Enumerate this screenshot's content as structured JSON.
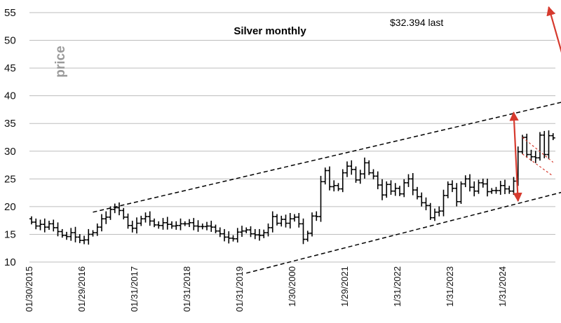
{
  "chart_data": {
    "type": "ohlc",
    "title": "Silver monthly",
    "ylabel": "price",
    "annotation": "$32.394 last",
    "ylim": [
      10,
      55
    ],
    "yticks": [
      10,
      15,
      20,
      25,
      30,
      35,
      40,
      45,
      50,
      55
    ],
    "grid": "horizontal",
    "x_tick_labels": [
      "01/30/2015",
      "01/29/2016",
      "01/31/2017",
      "01/31/2018",
      "01/31/2019",
      "1/30/2000",
      "1/29/2021",
      "1/31/2022",
      "1/31/2023",
      "1/31/2024"
    ],
    "colors": {
      "bars": "#000000",
      "trendlines": "#000000",
      "arrows": "#d63a2e",
      "grid": "#bdbdbd"
    },
    "monthly_close": [
      17.2,
      16.5,
      16.8,
      16.3,
      16.9,
      16.2,
      15.5,
      14.8,
      14.6,
      15.3,
      14.5,
      13.9,
      14.0,
      15.0,
      15.3,
      16.3,
      17.8,
      18.1,
      19.5,
      19.8,
      19.3,
      18.1,
      16.6,
      16.1,
      17.0,
      17.8,
      18.2,
      17.4,
      16.7,
      16.6,
      17.1,
      16.8,
      16.5,
      16.6,
      16.9,
      16.9,
      17.1,
      16.5,
      16.4,
      16.4,
      16.5,
      16.3,
      15.6,
      15.1,
      14.5,
      14.3,
      14.2,
      15.4,
      15.6,
      15.8,
      15.1,
      14.9,
      14.8,
      15.3,
      16.2,
      18.2,
      17.0,
      17.7,
      17.0,
      17.8,
      18.1,
      16.9,
      14.1,
      15.2,
      18.3,
      18.2,
      24.5,
      26.5,
      23.6,
      23.8,
      23.2,
      26.1,
      27.3,
      26.7,
      24.8,
      25.9,
      27.9,
      26.1,
      25.5,
      23.9,
      22.1,
      24.0,
      22.8,
      23.3,
      22.3,
      24.3,
      25.0,
      23.0,
      21.8,
      20.7,
      20.2,
      18.0,
      19.0,
      19.2,
      22.0,
      24.0,
      23.3,
      20.9,
      24.1,
      25.0,
      23.5,
      22.8,
      24.3,
      24.1,
      22.7,
      22.9,
      22.9,
      23.8,
      23.2,
      22.8,
      24.6,
      29.9,
      32.5,
      29.4,
      29.0,
      28.8,
      32.9,
      29.4,
      32.8,
      32.4
    ],
    "trendlines": [
      {
        "name": "upper-channel",
        "from": [
          "2016-03",
          19.0
        ],
        "to": [
          "2025-05",
          39.4
        ]
      },
      {
        "name": "lower-channel",
        "from": [
          "2019-02",
          8.0
        ],
        "to": [
          "2025-05",
          23.2
        ]
      },
      {
        "name": "flag-upper",
        "from": [
          "2024-05",
          32.5
        ],
        "to": [
          "2024-12",
          28.0
        ]
      },
      {
        "name": "flag-lower",
        "from": [
          "2024-05",
          29.5
        ],
        "to": [
          "2024-12",
          25.5
        ]
      }
    ],
    "arrows": [
      {
        "name": "channel-width-arrow-recent",
        "from": [
          "2024-03",
          37.0
        ],
        "to": [
          "2024-04",
          21.0
        ]
      },
      {
        "name": "projection-arrow",
        "from": [
          "2024-11",
          56.0
        ],
        "to": [
          "2025-05",
          39.4
        ]
      }
    ]
  }
}
